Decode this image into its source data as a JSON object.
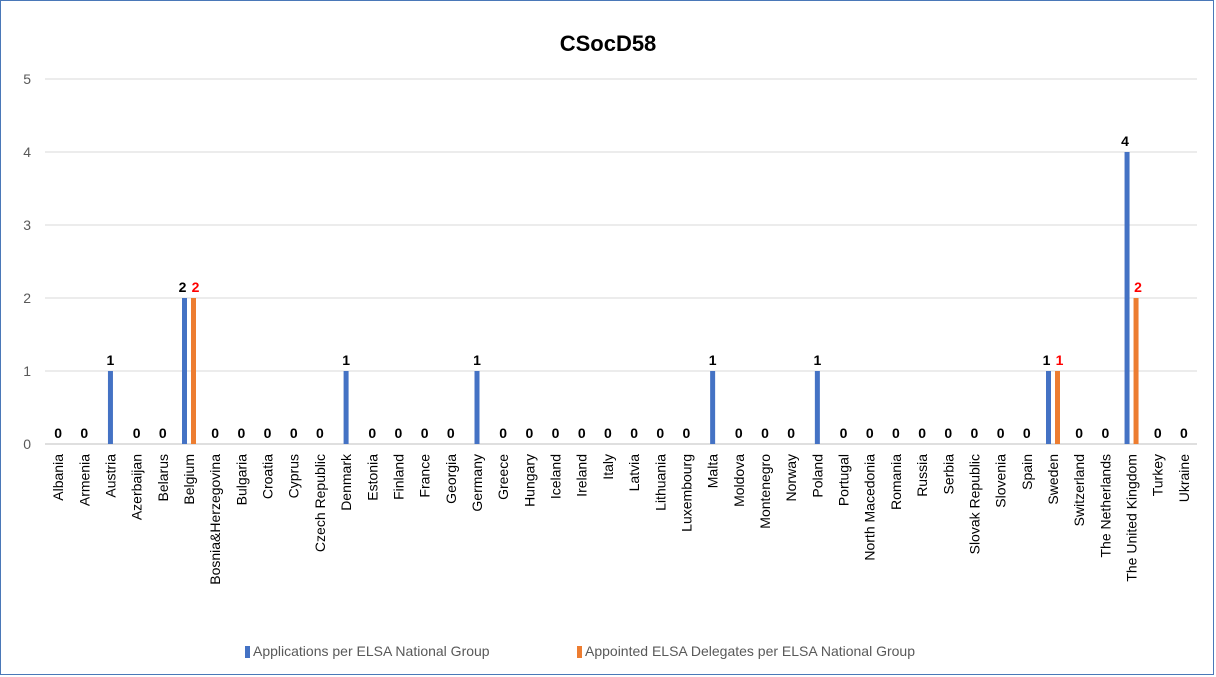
{
  "chart_data": {
    "type": "bar",
    "title": "CSocD58",
    "xlabel": "",
    "ylabel": "",
    "ylim": [
      0,
      5
    ],
    "yticks": [
      0,
      1,
      2,
      3,
      4,
      5
    ],
    "grid": true,
    "legend_position": "bottom",
    "categories": [
      "Albania",
      "Armenia",
      "Austria",
      "Azerbaijan",
      "Belarus",
      "Belgium",
      "Bosnia&Herzegovina",
      "Bulgaria",
      "Croatia",
      "Cyprus",
      "Czech Republic",
      "Denmark",
      "Estonia",
      "Finland",
      "France",
      "Georgia",
      "Germany",
      "Greece",
      "Hungary",
      "Iceland",
      "Ireland",
      "Italy",
      "Latvia",
      "Lithuania",
      "Luxembourg",
      "Malta",
      "Moldova",
      "Montenegro",
      "Norway",
      "Poland",
      "Portugal",
      "North Macedonia",
      "Romania",
      "Russia",
      "Serbia",
      "Slovak Republic",
      "Slovenia",
      "Spain",
      "Sweden",
      "Switzerland",
      "The Netherlands",
      "The United Kingdom",
      "Turkey",
      "Ukraine"
    ],
    "series": [
      {
        "name": "Applications per ELSA National Group",
        "color": "#4472c4",
        "label_color": "#000000",
        "values": [
          0,
          0,
          1,
          0,
          0,
          2,
          0,
          0,
          0,
          0,
          0,
          1,
          0,
          0,
          0,
          0,
          1,
          0,
          0,
          0,
          0,
          0,
          0,
          0,
          0,
          1,
          0,
          0,
          0,
          1,
          0,
          0,
          0,
          0,
          0,
          0,
          0,
          0,
          1,
          0,
          0,
          4,
          0,
          0
        ]
      },
      {
        "name": "Appointed ELSA Delegates per ELSA National Group",
        "color": "#ed7d31",
        "label_color": "#ff0000",
        "values": [
          null,
          null,
          null,
          null,
          null,
          2,
          null,
          null,
          null,
          null,
          null,
          null,
          null,
          null,
          null,
          null,
          null,
          null,
          null,
          null,
          null,
          null,
          null,
          null,
          null,
          null,
          null,
          null,
          null,
          null,
          null,
          null,
          null,
          null,
          null,
          null,
          null,
          null,
          1,
          null,
          null,
          2,
          null,
          null
        ]
      }
    ]
  }
}
